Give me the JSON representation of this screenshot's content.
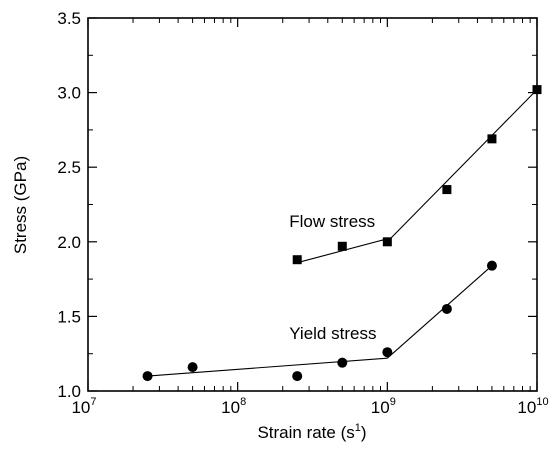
{
  "chart_data": {
    "type": "scatter",
    "xscale": "log",
    "xlabel": "Strain rate (s",
    "xlabel_exp": "1",
    "xlabel_close": ")",
    "ylabel": "Stress (GPa)",
    "xlim": [
      10000000,
      10000000000
    ],
    "ylim": [
      1.0,
      3.5
    ],
    "x_ticks": [
      {
        "value": 10000000,
        "base": "10",
        "exp": "7"
      },
      {
        "value": 100000000,
        "base": "10",
        "exp": "8"
      },
      {
        "value": 1000000000,
        "base": "10",
        "exp": "9"
      },
      {
        "value": 10000000000,
        "base": "10",
        "exp": "10"
      }
    ],
    "y_ticks": [
      {
        "value": 1.0,
        "label": "1.0"
      },
      {
        "value": 1.5,
        "label": "1.5"
      },
      {
        "value": 2.0,
        "label": "2.0"
      },
      {
        "value": 2.5,
        "label": "2.5"
      },
      {
        "value": 3.0,
        "label": "3.0"
      },
      {
        "value": 3.5,
        "label": "3.5"
      }
    ],
    "grid": false,
    "legend": "none",
    "series": [
      {
        "name": "Flow stress",
        "marker": "square",
        "label_at": [
          250000000,
          2.1
        ],
        "x": [
          250000000,
          500000000,
          1000000000,
          2500000000,
          5000000000,
          10000000000
        ],
        "y": [
          1.88,
          1.97,
          2.0,
          2.35,
          2.69,
          3.02
        ],
        "fit_lines": [
          {
            "x": [
              250000000,
              1000000000
            ],
            "y": [
              1.86,
              2.02
            ]
          },
          {
            "x": [
              1000000000,
              10000000000
            ],
            "y": [
              2.0,
              3.02
            ]
          }
        ]
      },
      {
        "name": "Yield stress",
        "marker": "circle",
        "label_at": [
          250000000,
          1.35
        ],
        "x": [
          25000000,
          50000000,
          250000000,
          500000000,
          1000000000,
          2500000000,
          5000000000
        ],
        "y": [
          1.1,
          1.16,
          1.1,
          1.19,
          1.26,
          1.55,
          1.84
        ],
        "fit_lines": [
          {
            "x": [
              25000000,
              1000000000
            ],
            "y": [
              1.1,
              1.22
            ]
          },
          {
            "x": [
              1000000000,
              5000000000
            ],
            "y": [
              1.22,
              1.84
            ]
          }
        ]
      }
    ]
  }
}
